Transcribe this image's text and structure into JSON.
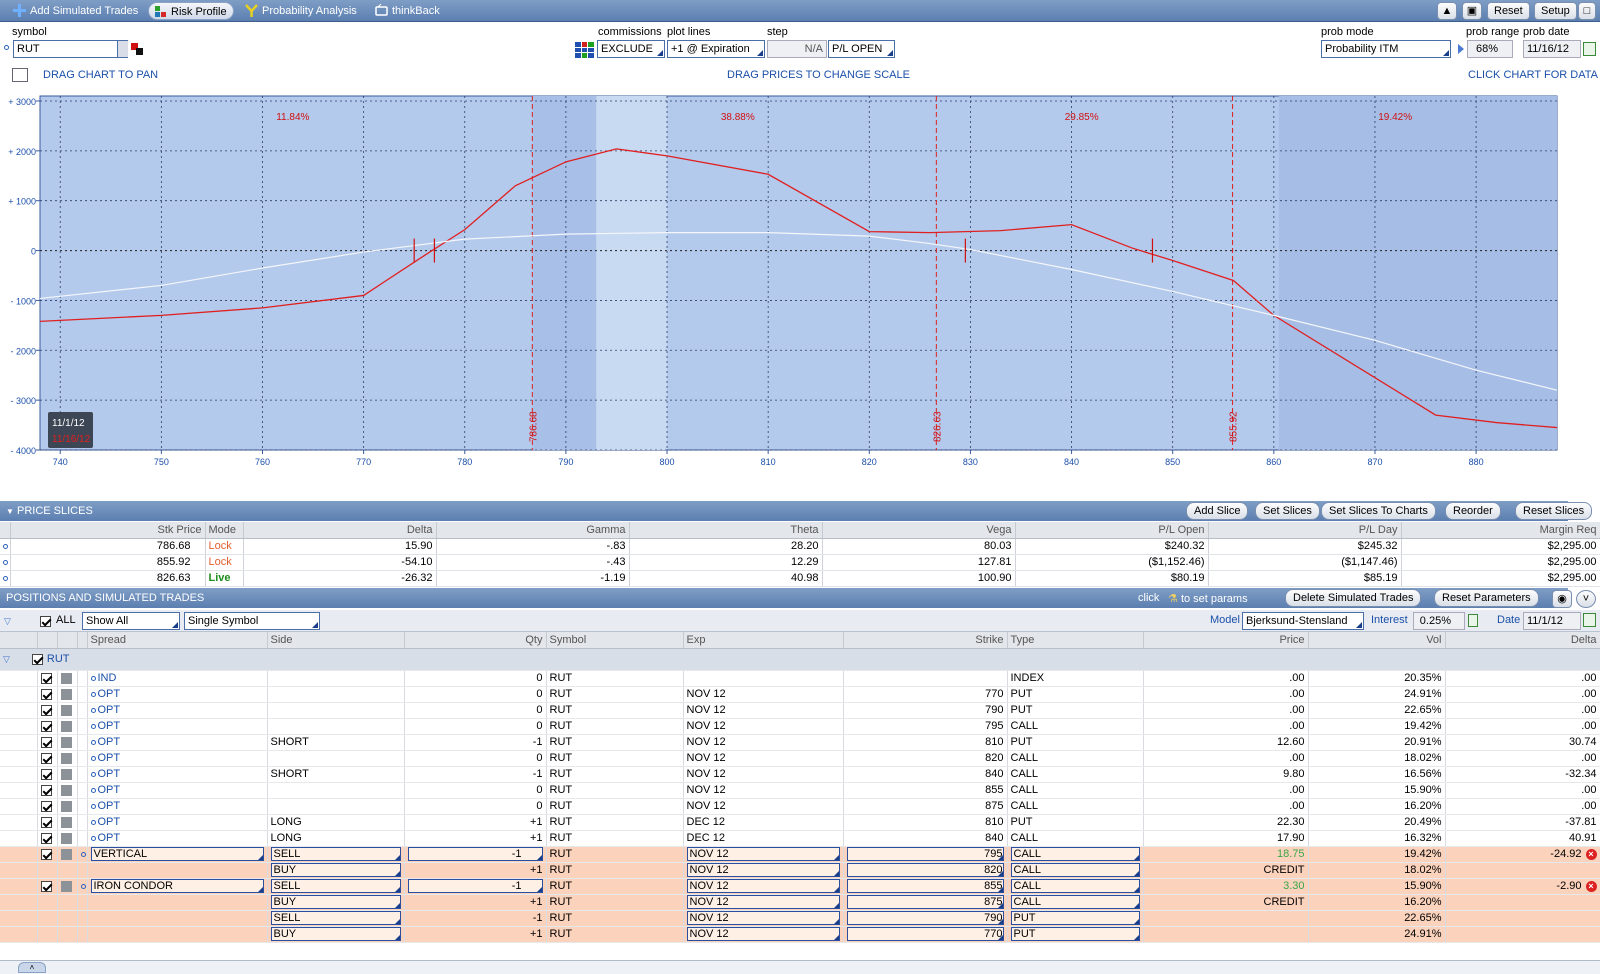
{
  "toolbar": {
    "tabs": [
      {
        "label": "Add Simulated Trades",
        "icon": "plus-icon"
      },
      {
        "label": "Risk Profile",
        "icon": "risk-profile-icon"
      },
      {
        "label": "Probability Analysis",
        "icon": "probability-icon"
      },
      {
        "label": "thinkBack",
        "icon": "thinkback-icon"
      }
    ],
    "reset_label": "Reset",
    "setup_label": "Setup"
  },
  "header": {
    "symbol_label": "symbol",
    "symbol_value": "RUT",
    "commissions_label": "commissions",
    "commissions_value": "EXCLUDE",
    "plot_lines_label": "plot lines",
    "plot_lines_value": "+1 @ Expiration",
    "step_label": "step",
    "step_value": "N/A",
    "pl_value": "P/L OPEN",
    "prob_mode_label": "prob mode",
    "prob_mode_value": "Probability ITM",
    "prob_range_label": "prob range",
    "prob_range_value": "68%",
    "prob_date_label": "prob date",
    "prob_date_value": "11/16/12",
    "drag_pan_hint": "DRAG CHART TO PAN",
    "drag_scale_hint": "DRAG PRICES TO CHANGE SCALE",
    "click_data_hint": "CLICK CHART FOR DATA"
  },
  "chart_data": {
    "type": "line",
    "y_ticks": [
      "+ 3000",
      "+ 2000",
      "+ 1000",
      "0",
      "- 1000",
      "- 2000",
      "- 3000",
      "- 4000"
    ],
    "x_ticks": [
      "740",
      "750",
      "760",
      "770",
      "780",
      "790",
      "800",
      "810",
      "820",
      "830",
      "840",
      "850",
      "860",
      "870",
      "880"
    ],
    "xlim": [
      738,
      888
    ],
    "ylim": [
      -4000,
      3100
    ],
    "prob_labels": [
      {
        "x": 763,
        "text": "11.84%"
      },
      {
        "x": 807,
        "text": "38.88%"
      },
      {
        "x": 841,
        "text": "29.85%"
      },
      {
        "x": 872,
        "text": "19.42%"
      }
    ],
    "slice_lines": [
      786.68,
      826.63,
      855.92
    ],
    "slice_labels": [
      "786.68",
      "826.63",
      "855.92"
    ],
    "shaded_regions": [
      [
        786.68,
        793
      ],
      [
        793,
        800
      ],
      [
        860.5,
        888
      ]
    ],
    "date_box": {
      "date1": "11/1/12",
      "date2": "11/16/12"
    },
    "series": [
      {
        "color": "#e02020",
        "x": [
          738,
          750,
          760,
          770,
          776,
          780,
          785,
          790,
          795,
          800,
          810,
          820,
          826,
          833,
          840,
          846,
          850,
          856,
          860,
          870,
          876,
          882,
          888
        ],
        "y": [
          -1420,
          -1300,
          -1150,
          -900,
          -100,
          420,
          1300,
          1780,
          2040,
          1900,
          1530,
          380,
          360,
          400,
          520,
          50,
          -200,
          -600,
          -1300,
          -2550,
          -3300,
          -3450,
          -3550
        ]
      },
      {
        "color": "#f4f6fa",
        "x": [
          738,
          750,
          760,
          770,
          780,
          790,
          800,
          810,
          820,
          826,
          830,
          840,
          850,
          860,
          870,
          880,
          888
        ],
        "y": [
          -960,
          -700,
          -350,
          -30,
          230,
          330,
          360,
          360,
          290,
          140,
          20,
          -380,
          -820,
          -1300,
          -1800,
          -2400,
          -2800
        ]
      }
    ],
    "breakeven_marks": [
      {
        "x": 775,
        "y": 0
      },
      {
        "x": 777,
        "y": 0
      },
      {
        "x": 829.5,
        "y": 0
      },
      {
        "x": 848,
        "y": 0
      }
    ]
  },
  "price_slices": {
    "title": "PRICE SLICES",
    "buttons": [
      "Add Slice",
      "Set Slices",
      "Set Slices To Charts",
      "Reorder",
      "Reset Slices"
    ],
    "columns": [
      "Stk Price",
      "Mode",
      "Delta",
      "Gamma",
      "Theta",
      "Vega",
      "P/L Open",
      "P/L Day",
      "Margin Req"
    ],
    "rows": [
      [
        "786.68",
        "Lock",
        "15.90",
        "-.83",
        "28.20",
        "80.03",
        "$240.32",
        "$245.32",
        "$2,295.00"
      ],
      [
        "855.92",
        "Lock",
        "-54.10",
        "-.43",
        "12.29",
        "127.81",
        "($1,152.46)",
        "($1,147.46)",
        "$2,295.00"
      ],
      [
        "826.63",
        "Live",
        "-26.32",
        "-1.19",
        "40.98",
        "100.90",
        "$80.19",
        "$85.19",
        "$2,295.00"
      ]
    ]
  },
  "positions": {
    "title": "POSITIONS AND SIMULATED TRADES",
    "click_hint": "click",
    "set_params_hint": "to set params",
    "delete_btn": "Delete Simulated Trades",
    "reset_params_btn": "Reset Parameters",
    "all_label": "ALL",
    "show_all": "Show All",
    "single_symbol": "Single Symbol",
    "model_label": "Model",
    "model_value": "Bjerksund-Stensland",
    "interest_label": "Interest",
    "interest_value": "0.25%",
    "date_label": "Date",
    "date_value": "11/1/12",
    "columns": [
      "Spread",
      "Side",
      "Qty",
      "Symbol",
      "Exp",
      "Strike",
      "Type",
      "Price",
      "Vol",
      "Delta"
    ],
    "group": "RUT",
    "rows": [
      [
        "IND",
        "",
        "0",
        "RUT",
        "",
        "",
        "INDEX",
        ".00",
        "20.35%",
        ".00"
      ],
      [
        "OPT",
        "",
        "0",
        "RUT",
        "NOV 12",
        "770",
        "PUT",
        ".00",
        "24.91%",
        ".00"
      ],
      [
        "OPT",
        "",
        "0",
        "RUT",
        "NOV 12",
        "790",
        "PUT",
        ".00",
        "22.65%",
        ".00"
      ],
      [
        "OPT",
        "",
        "0",
        "RUT",
        "NOV 12",
        "795",
        "CALL",
        ".00",
        "19.42%",
        ".00"
      ],
      [
        "OPT",
        "SHORT",
        "-1",
        "RUT",
        "NOV 12",
        "810",
        "PUT",
        "12.60",
        "20.91%",
        "30.74"
      ],
      [
        "OPT",
        "",
        "0",
        "RUT",
        "NOV 12",
        "820",
        "CALL",
        ".00",
        "18.02%",
        ".00"
      ],
      [
        "OPT",
        "SHORT",
        "-1",
        "RUT",
        "NOV 12",
        "840",
        "CALL",
        "9.80",
        "16.56%",
        "-32.34"
      ],
      [
        "OPT",
        "",
        "0",
        "RUT",
        "NOV 12",
        "855",
        "CALL",
        ".00",
        "15.90%",
        ".00"
      ],
      [
        "OPT",
        "",
        "0",
        "RUT",
        "NOV 12",
        "875",
        "CALL",
        ".00",
        "16.20%",
        ".00"
      ],
      [
        "OPT",
        "LONG",
        "+1",
        "RUT",
        "DEC 12",
        "810",
        "PUT",
        "22.30",
        "20.49%",
        "-37.81"
      ],
      [
        "OPT",
        "LONG",
        "+1",
        "RUT",
        "DEC 12",
        "840",
        "CALL",
        "17.90",
        "16.32%",
        "40.91"
      ]
    ],
    "sim_rows": [
      {
        "spread": "VERTICAL",
        "side": "SELL",
        "qty": "-1",
        "symbol": "RUT",
        "exp": "NOV 12",
        "strike": "795",
        "type": "CALL",
        "price": "18.75",
        "vol": "19.42%",
        "delta": "-24.92",
        "first": true
      },
      {
        "spread": "",
        "side": "BUY",
        "qty": "+1",
        "symbol": "RUT",
        "exp": "NOV 12",
        "strike": "820",
        "type": "CALL",
        "price": "CREDIT",
        "vol": "18.02%",
        "delta": ""
      },
      {
        "spread": "IRON CONDOR",
        "side": "SELL",
        "qty": "-1",
        "symbol": "RUT",
        "exp": "NOV 12",
        "strike": "855",
        "type": "CALL",
        "price": "3.30",
        "vol": "15.90%",
        "delta": "-2.90",
        "first": true
      },
      {
        "spread": "",
        "side": "BUY",
        "qty": "+1",
        "symbol": "RUT",
        "exp": "NOV 12",
        "strike": "875",
        "type": "CALL",
        "price": "CREDIT",
        "vol": "16.20%",
        "delta": ""
      },
      {
        "spread": "",
        "side": "SELL",
        "qty": "-1",
        "symbol": "RUT",
        "exp": "NOV 12",
        "strike": "790",
        "type": "PUT",
        "price": "",
        "vol": "22.65%",
        "delta": ""
      },
      {
        "spread": "",
        "side": "BUY",
        "qty": "+1",
        "symbol": "RUT",
        "exp": "NOV 12",
        "strike": "770",
        "type": "PUT",
        "price": "",
        "vol": "24.91%",
        "delta": ""
      }
    ]
  }
}
